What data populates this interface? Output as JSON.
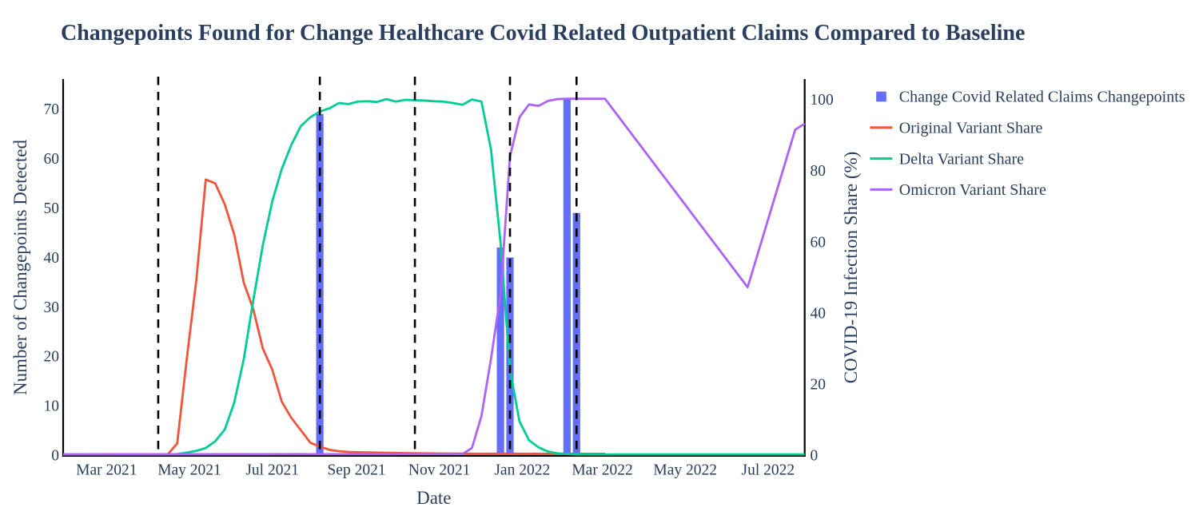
{
  "title": "Changepoints Found for Change Healthcare Covid Related Outpatient Claims Compared to Baseline",
  "x_axis": {
    "title": "Date",
    "ticks": [
      {
        "label": "Mar 2021",
        "date": "2021-03-01"
      },
      {
        "label": "May 2021",
        "date": "2021-05-01"
      },
      {
        "label": "Jul 2021",
        "date": "2021-07-01"
      },
      {
        "label": "Sep 2021",
        "date": "2021-09-01"
      },
      {
        "label": "Nov 2021",
        "date": "2021-11-01"
      },
      {
        "label": "Jan 2022",
        "date": "2022-01-01"
      },
      {
        "label": "Mar 2022",
        "date": "2022-03-01"
      },
      {
        "label": "May 2022",
        "date": "2022-05-01"
      },
      {
        "label": "Jul 2022",
        "date": "2022-07-01"
      }
    ]
  },
  "y_left": {
    "title": "Number of Changepoints Detected",
    "ticks": [
      0,
      10,
      20,
      30,
      40,
      50,
      60,
      70
    ],
    "range": [
      0,
      75.93
    ]
  },
  "y_right": {
    "title": "COVID-19 Infection Share (%)",
    "ticks": [
      0,
      20,
      40,
      60,
      80,
      100
    ],
    "range": [
      0,
      105.52
    ]
  },
  "legend": {
    "items": [
      {
        "label": "Change Covid Related Claims Changepoints",
        "marker": "square",
        "color": "#636EFA"
      },
      {
        "label": "Original Variant Share",
        "marker": "line",
        "color": "#EF553B"
      },
      {
        "label": "Delta Variant Share",
        "marker": "line",
        "color": "#00CC96"
      },
      {
        "label": "Omicron Variant Share",
        "marker": "line",
        "color": "#AB63FA"
      }
    ]
  },
  "colors": {
    "text": "#2a3f5f",
    "axis_line": "#000000",
    "vline": "#000000",
    "background": "#ffffff",
    "bar": "#636EFA",
    "original": "#EF553B",
    "delta": "#00CC96",
    "omicron": "#AB63FA"
  },
  "chart_data": {
    "type": "mixed",
    "x_domain": [
      "2021-01-28",
      "2022-07-28"
    ],
    "grid": false,
    "legend_position": "right",
    "series": [
      {
        "name": "Change Covid Related Claims Changepoints",
        "type": "bar",
        "axis": "left",
        "color": "#636EFA",
        "x": [
          "2021-08-05",
          "2021-12-16",
          "2021-12-23",
          "2022-02-03",
          "2022-02-10"
        ],
        "y": [
          69,
          42,
          40,
          72,
          49
        ]
      },
      {
        "name": "Original Variant Share",
        "type": "line",
        "axis": "right",
        "color": "#EF553B",
        "x": [
          "2021-01-28",
          "2021-04-15",
          "2021-04-22",
          "2021-04-29",
          "2021-05-06",
          "2021-05-13",
          "2021-05-20",
          "2021-05-27",
          "2021-06-03",
          "2021-06-10",
          "2021-06-17",
          "2021-06-24",
          "2021-07-01",
          "2021-07-08",
          "2021-07-15",
          "2021-07-22",
          "2021-07-29",
          "2021-08-05",
          "2021-08-12",
          "2021-08-19",
          "2021-08-26",
          "2021-09-02",
          "2021-09-30",
          "2021-11-04",
          "2021-12-02",
          "2022-03-03"
        ],
        "y": [
          0.2,
          0.2,
          3.3,
          27,
          49,
          77.5,
          76.4,
          70.5,
          62,
          48.5,
          41,
          30,
          24,
          15,
          10.5,
          7,
          3.5,
          2.4,
          1.5,
          1.1,
          0.9,
          0.8,
          0.6,
          0.45,
          0.4,
          0.35
        ]
      },
      {
        "name": "Delta Variant Share",
        "type": "line",
        "axis": "right",
        "color": "#00CC96",
        "x": [
          "2021-01-28",
          "2021-04-15",
          "2021-04-22",
          "2021-04-29",
          "2021-05-06",
          "2021-05-13",
          "2021-05-20",
          "2021-05-27",
          "2021-06-03",
          "2021-06-10",
          "2021-06-17",
          "2021-06-24",
          "2021-07-01",
          "2021-07-08",
          "2021-07-15",
          "2021-07-22",
          "2021-07-29",
          "2021-08-05",
          "2021-08-12",
          "2021-08-19",
          "2021-08-26",
          "2021-09-02",
          "2021-09-09",
          "2021-09-16",
          "2021-09-23",
          "2021-09-30",
          "2021-10-07",
          "2021-10-14",
          "2021-10-21",
          "2021-10-28",
          "2021-11-04",
          "2021-11-11",
          "2021-11-18",
          "2021-11-25",
          "2021-12-02",
          "2021-12-09",
          "2021-12-16",
          "2021-12-23",
          "2021-12-30",
          "2022-01-06",
          "2022-01-13",
          "2022-01-20",
          "2022-01-27",
          "2022-02-03",
          "2022-02-10",
          "2022-07-28"
        ],
        "y": [
          0.2,
          0.2,
          0.3,
          0.7,
          1.2,
          2.0,
          3.9,
          7.2,
          14.8,
          27,
          43.5,
          59,
          71.4,
          80.5,
          87.2,
          92.5,
          95.0,
          96.6,
          97.5,
          99.0,
          98.7,
          99.4,
          99.5,
          99.3,
          100.1,
          99.4,
          99.9,
          99.8,
          99.7,
          99.5,
          99.4,
          99.0,
          98.5,
          100.0,
          99.4,
          86,
          60,
          24,
          9.5,
          4.2,
          2.2,
          1.0,
          0.5,
          0.3,
          0.2,
          0.2
        ]
      },
      {
        "name": "Omicron Variant Share",
        "type": "line",
        "axis": "right",
        "color": "#AB63FA",
        "x": [
          "2021-01-28",
          "2021-11-18",
          "2021-11-25",
          "2021-12-02",
          "2021-12-09",
          "2021-12-16",
          "2021-12-23",
          "2021-12-30",
          "2022-01-06",
          "2022-01-13",
          "2022-01-20",
          "2022-01-27",
          "2022-02-03",
          "2022-03-03",
          "2022-06-16",
          "2022-07-21",
          "2022-07-28"
        ],
        "y": [
          0.2,
          0.3,
          2,
          11,
          27,
          45,
          84,
          95,
          98.6,
          98.2,
          99.6,
          100.1,
          100.2,
          100.2,
          47.2,
          91.5,
          93.2
        ]
      }
    ],
    "vlines": {
      "dates": [
        "2021-04-08",
        "2021-08-05",
        "2021-10-14",
        "2021-12-23",
        "2022-02-10"
      ],
      "style": "dashed",
      "color": "#000000"
    }
  }
}
